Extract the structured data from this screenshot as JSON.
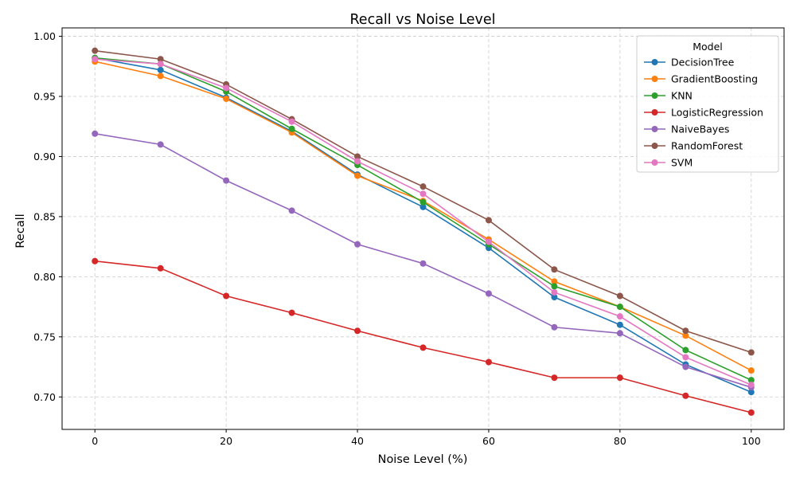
{
  "chart_data": {
    "type": "line",
    "title": "Recall vs Noise Level",
    "xlabel": "Noise Level (%)",
    "ylabel": "Recall",
    "x": [
      0,
      10,
      20,
      30,
      40,
      50,
      60,
      70,
      80,
      90,
      100
    ],
    "xlim": [
      -5,
      105
    ],
    "ylim": [
      0.673,
      1.007
    ],
    "xticks": [
      0,
      20,
      40,
      60,
      80,
      100
    ],
    "yticks": [
      0.7,
      0.75,
      0.8,
      0.85,
      0.9,
      0.95,
      1.0
    ],
    "xtick_labels": [
      "0",
      "20",
      "40",
      "60",
      "80",
      "100"
    ],
    "ytick_labels": [
      "0.70",
      "0.75",
      "0.80",
      "0.85",
      "0.90",
      "0.95",
      "1.00"
    ],
    "grid": true,
    "legend": {
      "title": "Model",
      "placement": "top-right"
    },
    "series": [
      {
        "name": "DecisionTree",
        "color": "#1f77b4",
        "values": [
          0.982,
          0.972,
          0.949,
          0.921,
          0.885,
          0.858,
          0.824,
          0.783,
          0.76,
          0.727,
          0.704
        ]
      },
      {
        "name": "GradientBoosting",
        "color": "#ff7f0e",
        "values": [
          0.979,
          0.967,
          0.948,
          0.92,
          0.884,
          0.863,
          0.831,
          0.796,
          0.775,
          0.751,
          0.722
        ]
      },
      {
        "name": "KNN",
        "color": "#2ca02c",
        "values": [
          0.982,
          0.977,
          0.954,
          0.923,
          0.893,
          0.862,
          0.827,
          0.792,
          0.775,
          0.739,
          0.714
        ]
      },
      {
        "name": "LogisticRegression",
        "color": "#d62728",
        "values": [
          0.813,
          0.807,
          0.784,
          0.77,
          0.755,
          0.741,
          0.729,
          0.716,
          0.716,
          0.701,
          0.687
        ]
      },
      {
        "name": "NaiveBayes",
        "color": "#9467bd",
        "values": [
          0.919,
          0.91,
          0.88,
          0.855,
          0.827,
          0.811,
          0.786,
          0.758,
          0.753,
          0.725,
          0.708
        ]
      },
      {
        "name": "RandomForest",
        "color": "#8c564b",
        "values": [
          0.988,
          0.981,
          0.96,
          0.931,
          0.9,
          0.875,
          0.847,
          0.806,
          0.784,
          0.755,
          0.737
        ]
      },
      {
        "name": "SVM",
        "color": "#e377c2",
        "values": [
          0.981,
          0.977,
          0.957,
          0.929,
          0.896,
          0.869,
          0.829,
          0.787,
          0.767,
          0.733,
          0.71
        ]
      }
    ]
  }
}
